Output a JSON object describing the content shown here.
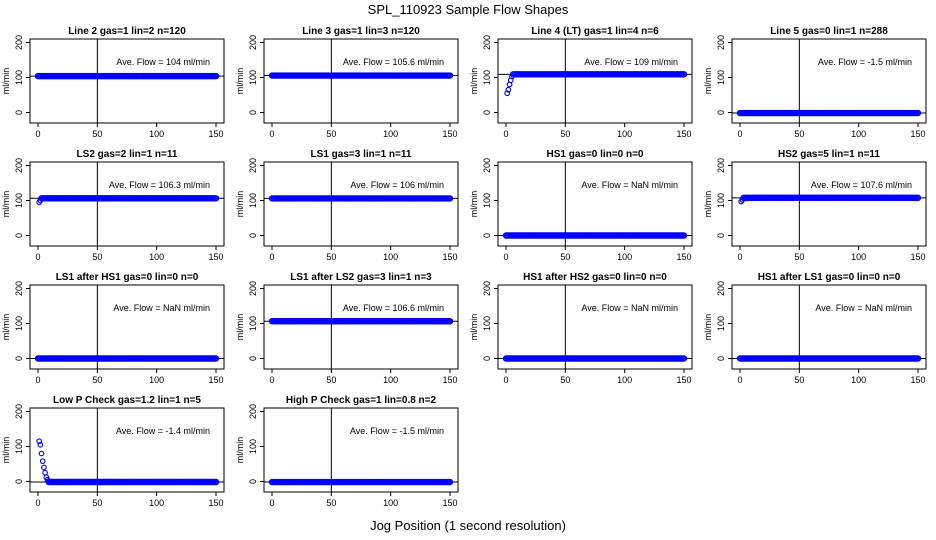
{
  "title": "SPL_110923  Sample Flow Shapes",
  "xlabel": "Jog Position (1 second resolution)",
  "colors": {
    "points": "#0000ff",
    "axes": "#000000"
  },
  "chart_data": [
    {
      "type": "scatter",
      "title": "Line 2 gas=1 lin=2 n=120",
      "ylabel": "ml/min",
      "annotation": "Ave. Flow =  104  ml/min",
      "xlim": [
        0,
        150
      ],
      "ylim": [
        -30,
        210
      ],
      "xticks": [
        "0",
        "50",
        "100",
        "150"
      ],
      "yticks": [
        "0",
        "100",
        "200"
      ],
      "vline_x": 50,
      "hline_y": 104,
      "series": [
        {
          "shape": "flat",
          "level": 104,
          "x_start": 0,
          "x_end": 150
        }
      ]
    },
    {
      "type": "scatter",
      "title": "Line 3 gas=1 lin=3 n=120",
      "ylabel": "ml/min",
      "annotation": "Ave. Flow =  105.6  ml/min",
      "xlim": [
        0,
        150
      ],
      "ylim": [
        -30,
        210
      ],
      "xticks": [
        "0",
        "50",
        "100",
        "150"
      ],
      "yticks": [
        "0",
        "100",
        "200"
      ],
      "vline_x": 50,
      "hline_y": 105.6,
      "series": [
        {
          "shape": "flat",
          "level": 105.6,
          "x_start": 0,
          "x_end": 150
        }
      ]
    },
    {
      "type": "scatter",
      "title": "Line 4 (LT) gas=1 lin=4 n=6",
      "ylabel": "ml/min",
      "annotation": "Ave. Flow =  109  ml/min",
      "xlim": [
        0,
        150
      ],
      "ylim": [
        -30,
        210
      ],
      "xticks": [
        "0",
        "50",
        "100",
        "150"
      ],
      "yticks": [
        "0",
        "100",
        "200"
      ],
      "vline_x": 50,
      "hline_y": 109,
      "series": [
        {
          "shape": "flat",
          "level": 109,
          "x_start": 6,
          "x_end": 150,
          "extra_points": [
            [
              1,
              55
            ],
            [
              2,
              65
            ],
            [
              3,
              80
            ],
            [
              4,
              92
            ],
            [
              5,
              103
            ]
          ]
        }
      ]
    },
    {
      "type": "scatter",
      "title": "Line 5 gas=0 lin=1 n=288",
      "ylabel": "ml/min",
      "annotation": "Ave. Flow =  -1.5  ml/min",
      "xlim": [
        0,
        150
      ],
      "ylim": [
        -30,
        210
      ],
      "xticks": [
        "0",
        "50",
        "100",
        "150"
      ],
      "yticks": [
        "0",
        "100",
        "200"
      ],
      "vline_x": 50,
      "hline_y": -1.5,
      "series": [
        {
          "shape": "flat",
          "level": -1.5,
          "x_start": 0,
          "x_end": 150
        }
      ]
    },
    {
      "type": "scatter",
      "title": "LS2 gas=2 lin=1 n=11",
      "ylabel": "ml/min",
      "annotation": "Ave. Flow =  106.3  ml/min",
      "xlim": [
        0,
        150
      ],
      "ylim": [
        -30,
        210
      ],
      "xticks": [
        "0",
        "50",
        "100",
        "150"
      ],
      "yticks": [
        "0",
        "100",
        "200"
      ],
      "vline_x": 50,
      "hline_y": 106.3,
      "series": [
        {
          "shape": "flat",
          "level": 106.3,
          "x_start": 3,
          "x_end": 150,
          "extra_points": [
            [
              1,
              95
            ],
            [
              2,
              100
            ]
          ]
        }
      ]
    },
    {
      "type": "scatter",
      "title": "LS1 gas=3 lin=1 n=11",
      "ylabel": "ml/min",
      "annotation": "Ave. Flow =  106  ml/min",
      "xlim": [
        0,
        150
      ],
      "ylim": [
        -30,
        210
      ],
      "xticks": [
        "0",
        "50",
        "100",
        "150"
      ],
      "yticks": [
        "0",
        "100",
        "200"
      ],
      "vline_x": 50,
      "hline_y": 106,
      "series": [
        {
          "shape": "flat",
          "level": 106,
          "x_start": 0,
          "x_end": 150
        }
      ]
    },
    {
      "type": "scatter",
      "title": "HS1 gas=0 lin=0 n=0",
      "ylabel": "ml/min",
      "annotation": "Ave. Flow =  NaN  ml/min",
      "xlim": [
        0,
        150
      ],
      "ylim": [
        -30,
        210
      ],
      "xticks": [
        "0",
        "50",
        "100",
        "150"
      ],
      "yticks": [
        "0",
        "100",
        "200"
      ],
      "vline_x": 50,
      "hline_y": 0,
      "series": [
        {
          "shape": "flat",
          "level": 0,
          "x_start": 0,
          "x_end": 150
        }
      ]
    },
    {
      "type": "scatter",
      "title": "HS2 gas=5 lin=1 n=11",
      "ylabel": "ml/min",
      "annotation": "Ave. Flow =  107.6  ml/min",
      "xlim": [
        0,
        150
      ],
      "ylim": [
        -30,
        210
      ],
      "xticks": [
        "0",
        "50",
        "100",
        "150"
      ],
      "yticks": [
        "0",
        "100",
        "200"
      ],
      "vline_x": 50,
      "hline_y": 107.6,
      "series": [
        {
          "shape": "flat",
          "level": 107.6,
          "x_start": 3,
          "x_end": 150,
          "extra_points": [
            [
              1,
              97
            ],
            [
              2,
              102
            ]
          ]
        }
      ]
    },
    {
      "type": "scatter",
      "title": "LS1 after HS1 gas=0 lin=0 n=0",
      "ylabel": "ml/min",
      "annotation": "Ave. Flow =  NaN  ml/min",
      "xlim": [
        0,
        150
      ],
      "ylim": [
        -30,
        210
      ],
      "xticks": [
        "0",
        "50",
        "100",
        "150"
      ],
      "yticks": [
        "0",
        "100",
        "200"
      ],
      "vline_x": 50,
      "hline_y": 0,
      "series": [
        {
          "shape": "flat",
          "level": 0,
          "x_start": 0,
          "x_end": 150
        }
      ]
    },
    {
      "type": "scatter",
      "title": "LS1 after LS2 gas=3 lin=1 n=3",
      "ylabel": "ml/min",
      "annotation": "Ave. Flow =  106.6  ml/min",
      "xlim": [
        0,
        150
      ],
      "ylim": [
        -30,
        210
      ],
      "xticks": [
        "0",
        "50",
        "100",
        "150"
      ],
      "yticks": [
        "0",
        "100",
        "200"
      ],
      "vline_x": 50,
      "hline_y": 106.6,
      "series": [
        {
          "shape": "flat",
          "level": 106.6,
          "x_start": 0,
          "x_end": 150
        }
      ]
    },
    {
      "type": "scatter",
      "title": "HS1 after HS2 gas=0 lin=0 n=0",
      "ylabel": "ml/min",
      "annotation": "Ave. Flow =  NaN  ml/min",
      "xlim": [
        0,
        150
      ],
      "ylim": [
        -30,
        210
      ],
      "xticks": [
        "0",
        "50",
        "100",
        "150"
      ],
      "yticks": [
        "0",
        "100",
        "200"
      ],
      "vline_x": 50,
      "hline_y": 0,
      "series": [
        {
          "shape": "flat",
          "level": 0,
          "x_start": 0,
          "x_end": 150
        }
      ]
    },
    {
      "type": "scatter",
      "title": "HS1 after LS1 gas=0 lin=0 n=0",
      "ylabel": "ml/min",
      "annotation": "Ave. Flow =  NaN  ml/min",
      "xlim": [
        0,
        150
      ],
      "ylim": [
        -30,
        210
      ],
      "xticks": [
        "0",
        "50",
        "100",
        "150"
      ],
      "yticks": [
        "0",
        "100",
        "200"
      ],
      "vline_x": 50,
      "hline_y": 0,
      "series": [
        {
          "shape": "flat",
          "level": 0,
          "x_start": 0,
          "x_end": 150
        }
      ]
    },
    {
      "type": "scatter",
      "title": "Low P Check gas=1.2 lin=1 n=5",
      "ylabel": "ml/min",
      "annotation": "Ave. Flow =  -1.4  ml/min",
      "xlim": [
        0,
        150
      ],
      "ylim": [
        -30,
        210
      ],
      "xticks": [
        "0",
        "50",
        "100",
        "150"
      ],
      "yticks": [
        "0",
        "100",
        "200"
      ],
      "vline_x": 50,
      "hline_y": -1.4,
      "series": [
        {
          "shape": "flat",
          "level": -1.4,
          "x_start": 9,
          "x_end": 150,
          "extra_points": [
            [
              1,
              115
            ],
            [
              2,
              105
            ],
            [
              3,
              80
            ],
            [
              4,
              58
            ],
            [
              5,
              40
            ],
            [
              6,
              25
            ],
            [
              7,
              12
            ],
            [
              8,
              5
            ]
          ]
        }
      ]
    },
    {
      "type": "scatter",
      "title": "High P Check gas=1 lin=0.8 n=2",
      "ylabel": "ml/min",
      "annotation": "Ave. Flow =  -1.5  ml/min",
      "xlim": [
        0,
        150
      ],
      "ylim": [
        -30,
        210
      ],
      "xticks": [
        "0",
        "50",
        "100",
        "150"
      ],
      "yticks": [
        "0",
        "100",
        "200"
      ],
      "vline_x": 50,
      "hline_y": -1.5,
      "series": [
        {
          "shape": "flat",
          "level": -1.5,
          "x_start": 0,
          "x_end": 150
        }
      ]
    }
  ]
}
